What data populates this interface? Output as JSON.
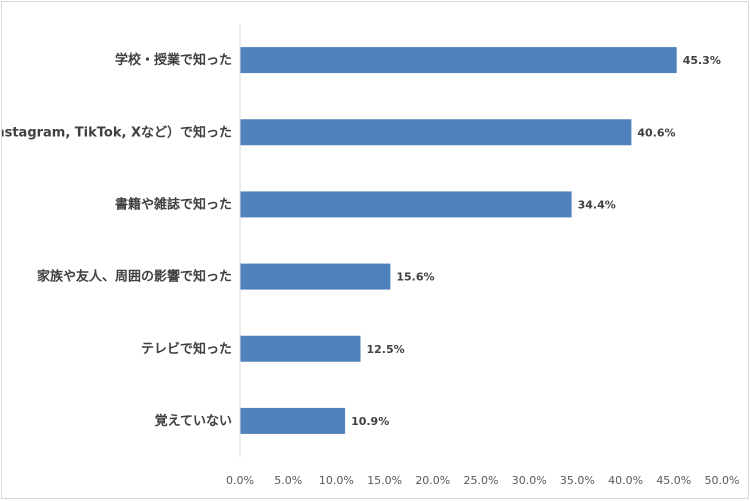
{
  "chart_data": {
    "type": "bar",
    "orientation": "horizontal",
    "title": "",
    "xlabel": "",
    "ylabel": "",
    "categories": [
      "学校・授業で知った",
      "SNS（Instagram, TikTok, Xなど）で知った",
      "書籍や雑誌で知った",
      "家族や友人、周囲の影響で知った",
      "テレビで知った",
      "覚えていない"
    ],
    "values": [
      45.3,
      40.6,
      34.4,
      15.6,
      12.5,
      10.9
    ],
    "value_labels": [
      "45.3%",
      "40.6%",
      "34.4%",
      "15.6%",
      "12.5%",
      "10.9%"
    ],
    "xlim": [
      0,
      50
    ],
    "xticks": [
      0,
      5,
      10,
      15,
      20,
      25,
      30,
      35,
      40,
      45,
      50
    ],
    "xtick_labels": [
      "0.0%",
      "5.0%",
      "10.0%",
      "15.0%",
      "20.0%",
      "25.0%",
      "30.0%",
      "35.0%",
      "40.0%",
      "45.0%",
      "50.0%"
    ],
    "bar_color": "#4f81bd",
    "grid": false,
    "legend": "none"
  }
}
